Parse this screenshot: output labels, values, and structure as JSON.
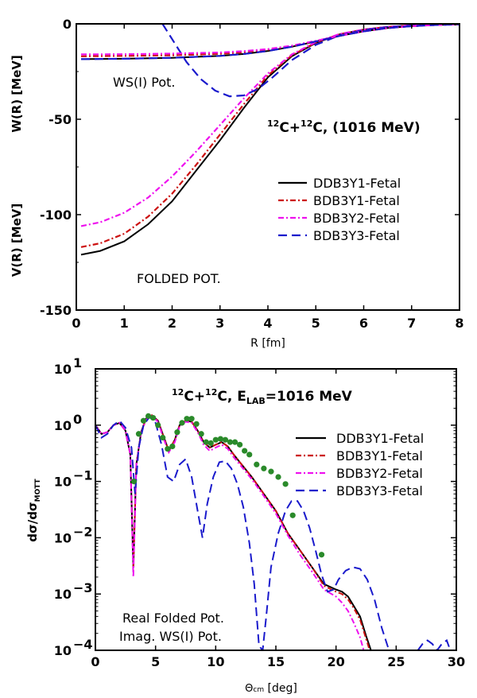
{
  "chart_data": [
    {
      "type": "line",
      "title": "¹²C+¹²C, (1016 MeV)",
      "title_parts": {
        "a_sup": "12",
        "a": "C+",
        "b_sup": "12",
        "b": "C, (1016 MeV)"
      },
      "xlabel": "R [fm]",
      "ylabel_top": "W(R) [MeV]",
      "ylabel_bottom": "V(R) [MeV]",
      "xlim": [
        0,
        8
      ],
      "ylim": [
        -150,
        0
      ],
      "xticks": [
        0,
        1,
        2,
        3,
        4,
        5,
        6,
        7,
        8
      ],
      "yticks": [
        0,
        -50,
        -100,
        -150
      ],
      "legend_position": "right",
      "annotations": {
        "ws": "WS(I) Pot.",
        "folded": "FOLDED POT."
      },
      "series": [
        {
          "name": "DDB3Y1-Fetal",
          "color": "#000000",
          "dash": "solid",
          "group": "real",
          "x": [
            0.1,
            0.5,
            1.0,
            1.5,
            2.0,
            2.5,
            3.0,
            3.5,
            4.0,
            4.5,
            5.0,
            5.5,
            6.0,
            6.5,
            7.0,
            7.5,
            8.0
          ],
          "y": [
            -121,
            -119,
            -114,
            -105,
            -93,
            -77,
            -61,
            -44,
            -28,
            -17,
            -10,
            -5.5,
            -3,
            -1.6,
            -0.8,
            -0.4,
            -0.2
          ]
        },
        {
          "name": "BDB3Y1-Fetal",
          "color": "#cc1111",
          "dash": "7,3,2,3",
          "group": "real",
          "x": [
            0.1,
            0.5,
            1.0,
            1.5,
            2.0,
            2.5,
            3.0,
            3.5,
            4.0,
            4.5,
            5.0,
            5.5,
            6.0,
            6.5,
            7.0,
            7.5,
            8.0
          ],
          "y": [
            -117,
            -115,
            -110,
            -101,
            -89,
            -74,
            -58,
            -42,
            -27,
            -16.5,
            -9.8,
            -5.4,
            -3,
            -1.6,
            -0.8,
            -0.4,
            -0.2
          ]
        },
        {
          "name": "BDB3Y2-Fetal",
          "color": "#ee11ee",
          "dash": "7,3,2,3",
          "group": "real",
          "x": [
            0.1,
            0.5,
            1.0,
            1.5,
            2.0,
            2.5,
            3.0,
            3.5,
            4.0,
            4.5,
            5.0,
            5.5,
            6.0,
            6.5,
            7.0,
            7.5,
            8.0
          ],
          "y": [
            -106,
            -104,
            -99,
            -91,
            -80,
            -67,
            -53,
            -39,
            -26,
            -16,
            -9.6,
            -5.3,
            -3,
            -1.6,
            -0.8,
            -0.4,
            -0.2
          ]
        },
        {
          "name": "BDB3Y3-Fetal",
          "color": "#1a1acc",
          "dash": "11,6",
          "group": "real",
          "x": [
            1.8,
            2.0,
            2.3,
            2.6,
            2.9,
            3.2,
            3.5,
            3.8,
            4.1,
            4.5,
            5.0,
            5.5,
            6.0,
            6.5,
            7.0,
            7.5,
            8.0
          ],
          "y": [
            0,
            -8,
            -20,
            -29,
            -35,
            -38,
            -37.5,
            -34,
            -28,
            -19,
            -11,
            -6,
            -3.2,
            -1.7,
            -0.9,
            -0.4,
            -0.2
          ]
        },
        {
          "name": "DDB3Y1-Fetal",
          "color": "#000000",
          "dash": "solid",
          "group": "imag",
          "x": [
            0.1,
            1.0,
            2.0,
            3.0,
            3.5,
            4.0,
            4.5,
            5.0,
            5.5,
            6.0,
            6.5,
            7.0,
            7.5,
            8.0
          ],
          "y": [
            -18.5,
            -18.3,
            -17.8,
            -16.8,
            -15.8,
            -14.2,
            -12,
            -9.2,
            -6.3,
            -3.9,
            -2.2,
            -1.2,
            -0.6,
            -0.3
          ]
        },
        {
          "name": "BDB3Y1-Fetal",
          "color": "#cc1111",
          "dash": "7,3,2,3",
          "group": "imag",
          "x": [
            0.1,
            1.0,
            2.0,
            3.0,
            3.5,
            4.0,
            4.5,
            5.0,
            5.5,
            6.0,
            6.5,
            7.0,
            7.5,
            8.0
          ],
          "y": [
            -17,
            -16.8,
            -16.5,
            -15.7,
            -14.9,
            -13.6,
            -11.6,
            -9,
            -6.2,
            -3.9,
            -2.2,
            -1.2,
            -0.6,
            -0.3
          ]
        },
        {
          "name": "BDB3Y2-Fetal",
          "color": "#ee11ee",
          "dash": "7,3,2,3",
          "group": "imag",
          "x": [
            0.1,
            1.0,
            2.0,
            3.0,
            3.5,
            4.0,
            4.5,
            5.0,
            5.5,
            6.0,
            6.5,
            7.0,
            7.5,
            8.0
          ],
          "y": [
            -16,
            -15.9,
            -15.6,
            -15,
            -14.3,
            -13.2,
            -11.4,
            -8.9,
            -6.2,
            -3.9,
            -2.2,
            -1.2,
            -0.6,
            -0.3
          ]
        },
        {
          "name": "BDB3Y3-Fetal",
          "color": "#1a1acc",
          "dash": "11,6",
          "group": "imag",
          "x": [
            0.1,
            1.0,
            2.0,
            3.0,
            3.5,
            4.0,
            4.5,
            5.0,
            5.5,
            6.0,
            6.5,
            7.0,
            7.5,
            8.0
          ],
          "y": [
            -18.5,
            -18.3,
            -17.8,
            -16.8,
            -15.8,
            -14.2,
            -12,
            -9.2,
            -6.3,
            -3.9,
            -2.2,
            -1.2,
            -0.6,
            -0.3
          ]
        }
      ]
    },
    {
      "type": "line",
      "title": "¹²C+¹²C, E_LAB=1016 MeV",
      "title_parts": {
        "a_sup": "12",
        "a": "C+",
        "b_sup": "12",
        "b": "C, E",
        "sub": "LAB",
        "c": "=1016 MeV"
      },
      "xlabel": "Θcm [deg]",
      "xlabel_parts": {
        "sym": "Θ",
        "sub": "cm",
        "rest": " [deg]"
      },
      "ylabel": "dσ/dσMOTT",
      "ylabel_parts": {
        "main": "dσ/dσ",
        "sub": "MOTT"
      },
      "xlim": [
        0,
        30
      ],
      "yscale": "log",
      "ylim": [
        0.0001,
        10
      ],
      "xticks": [
        0,
        5,
        10,
        15,
        20,
        25,
        30
      ],
      "ytick_exponents": [
        1,
        0,
        -1,
        -2,
        -3,
        -4
      ],
      "legend_position": "right",
      "annotations": {
        "line1": "Real Folded Pot.",
        "line2": "Imag. WS(I) Pot."
      },
      "data_points": {
        "color": "#2a8a2a",
        "x": [
          3.2,
          3.6,
          4.0,
          4.4,
          4.8,
          5.2,
          5.6,
          6.0,
          6.4,
          6.8,
          7.2,
          7.6,
          8.0,
          8.4,
          8.8,
          9.2,
          9.6,
          10.0,
          10.4,
          10.8,
          11.2,
          11.6,
          12.0,
          12.4,
          12.8,
          13.4,
          14.0,
          14.6,
          15.2,
          15.8,
          16.4,
          18.8
        ],
        "y": [
          0.1,
          0.7,
          1.2,
          1.45,
          1.35,
          1.0,
          0.6,
          0.38,
          0.42,
          0.75,
          1.1,
          1.3,
          1.3,
          1.05,
          0.7,
          0.5,
          0.48,
          0.55,
          0.57,
          0.55,
          0.5,
          0.5,
          0.45,
          0.35,
          0.3,
          0.2,
          0.17,
          0.15,
          0.12,
          0.09,
          0.025,
          0.005
        ]
      },
      "series": [
        {
          "name": "DDB3Y1-Fetal",
          "color": "#000000",
          "dash": "solid",
          "x": [
            0,
            0.5,
            1.0,
            1.5,
            2.0,
            2.5,
            2.9,
            3.15,
            3.4,
            3.8,
            4.2,
            4.7,
            5.2,
            5.7,
            6.1,
            6.6,
            7.0,
            7.5,
            8.0,
            8.5,
            9.0,
            9.5,
            10.0,
            10.5,
            11.0,
            11.5,
            12.0,
            13.0,
            14.0,
            15.0,
            16.0,
            17.0,
            18.0,
            19.0,
            20.0,
            20.5,
            21.0,
            21.5,
            22.0,
            22.5,
            22.9
          ],
          "y": [
            1.0,
            0.7,
            0.75,
            1.0,
            1.1,
            0.8,
            0.3,
            0.003,
            0.2,
            0.75,
            1.3,
            1.5,
            1.2,
            0.6,
            0.35,
            0.55,
            1.0,
            1.2,
            1.15,
            0.8,
            0.5,
            0.4,
            0.45,
            0.5,
            0.42,
            0.3,
            0.22,
            0.12,
            0.06,
            0.03,
            0.012,
            0.006,
            0.003,
            0.0015,
            0.0012,
            0.0011,
            0.0009,
            0.0006,
            0.0004,
            0.00018,
            0.0001
          ]
        },
        {
          "name": "BDB3Y1-Fetal",
          "color": "#cc1111",
          "dash": "7,3,2,3",
          "x": [
            0,
            0.5,
            1.0,
            1.5,
            2.0,
            2.5,
            2.9,
            3.15,
            3.4,
            3.8,
            4.2,
            4.7,
            5.2,
            5.7,
            6.1,
            6.6,
            7.0,
            7.5,
            8.0,
            8.5,
            9.0,
            9.5,
            10.0,
            10.5,
            11.0,
            11.5,
            12.0,
            13.0,
            14.0,
            15.0,
            16.0,
            17.0,
            18.0,
            19.0,
            20.0,
            20.5,
            21.0,
            21.5,
            22.0,
            22.5,
            22.8
          ],
          "y": [
            1.0,
            0.7,
            0.75,
            1.0,
            1.1,
            0.8,
            0.3,
            0.003,
            0.2,
            0.75,
            1.3,
            1.5,
            1.2,
            0.6,
            0.35,
            0.55,
            1.0,
            1.2,
            1.15,
            0.8,
            0.5,
            0.4,
            0.45,
            0.5,
            0.42,
            0.3,
            0.22,
            0.12,
            0.06,
            0.03,
            0.012,
            0.006,
            0.003,
            0.0014,
            0.0011,
            0.001,
            0.0008,
            0.00055,
            0.00035,
            0.00016,
            0.0001
          ]
        },
        {
          "name": "BDB3Y2-Fetal",
          "color": "#ee11ee",
          "dash": "7,3,2,3",
          "x": [
            0,
            0.5,
            1.0,
            1.5,
            2.0,
            2.5,
            2.9,
            3.15,
            3.4,
            3.8,
            4.2,
            4.7,
            5.2,
            5.7,
            6.1,
            6.6,
            7.0,
            7.5,
            8.0,
            8.5,
            9.0,
            9.5,
            10.0,
            10.5,
            11.0,
            11.5,
            12.0,
            13.0,
            14.0,
            15.0,
            16.0,
            17.0,
            18.0,
            19.0,
            20.0,
            20.5,
            21.0,
            21.5,
            22.0,
            22.3
          ],
          "y": [
            1.0,
            0.7,
            0.75,
            1.0,
            1.1,
            0.8,
            0.3,
            0.002,
            0.2,
            0.7,
            1.25,
            1.45,
            1.15,
            0.55,
            0.33,
            0.5,
            0.95,
            1.15,
            1.1,
            0.75,
            0.45,
            0.35,
            0.4,
            0.45,
            0.38,
            0.27,
            0.2,
            0.11,
            0.055,
            0.027,
            0.011,
            0.005,
            0.0025,
            0.0012,
            0.0009,
            0.0007,
            0.0005,
            0.0003,
            0.00017,
            0.0001
          ]
        },
        {
          "name": "BDB3Y3-Fetal",
          "color": "#1a1acc",
          "dash": "11,6",
          "x": [
            0,
            0.5,
            1.0,
            1.5,
            2.0,
            2.5,
            3.0,
            3.3,
            3.6,
            4.0,
            4.5,
            5.0,
            5.5,
            6.0,
            6.5,
            7.0,
            7.5,
            8.0,
            8.5,
            8.9,
            9.3,
            9.8,
            10.3,
            10.8,
            11.3,
            11.8,
            12.3,
            12.8,
            13.2,
            13.6,
            13.9,
            14.2,
            14.6,
            15.2,
            15.8,
            16.3,
            16.8,
            17.3,
            17.8,
            18.3,
            18.8,
            19.3,
            19.8,
            20.2,
            20.8,
            21.4,
            22.0,
            22.6,
            23.2,
            23.8,
            24.4,
            25.0,
            25.5,
            25.9,
            26.3,
            26.8,
            27.2,
            27.6,
            28.0,
            28.4,
            28.8,
            29.2,
            29.5
          ],
          "y": [
            1.0,
            0.6,
            0.7,
            1.0,
            1.2,
            0.9,
            0.4,
            0.06,
            0.4,
            1.0,
            1.4,
            1.1,
            0.45,
            0.12,
            0.1,
            0.2,
            0.25,
            0.12,
            0.03,
            0.01,
            0.04,
            0.12,
            0.22,
            0.23,
            0.17,
            0.09,
            0.035,
            0.008,
            0.0015,
            0.00012,
            0.0001,
            0.0004,
            0.003,
            0.012,
            0.03,
            0.045,
            0.045,
            0.03,
            0.015,
            0.006,
            0.0022,
            0.0011,
            0.0012,
            0.0018,
            0.0026,
            0.003,
            0.0028,
            0.0018,
            0.0008,
            0.00025,
            0.0001,
            0.0001,
            0.0001,
            0.0001,
            0.0001,
            0.0001,
            0.00013,
            0.00015,
            0.00013,
            0.0001,
            0.00013,
            0.00015,
            0.0001
          ]
        }
      ]
    }
  ]
}
